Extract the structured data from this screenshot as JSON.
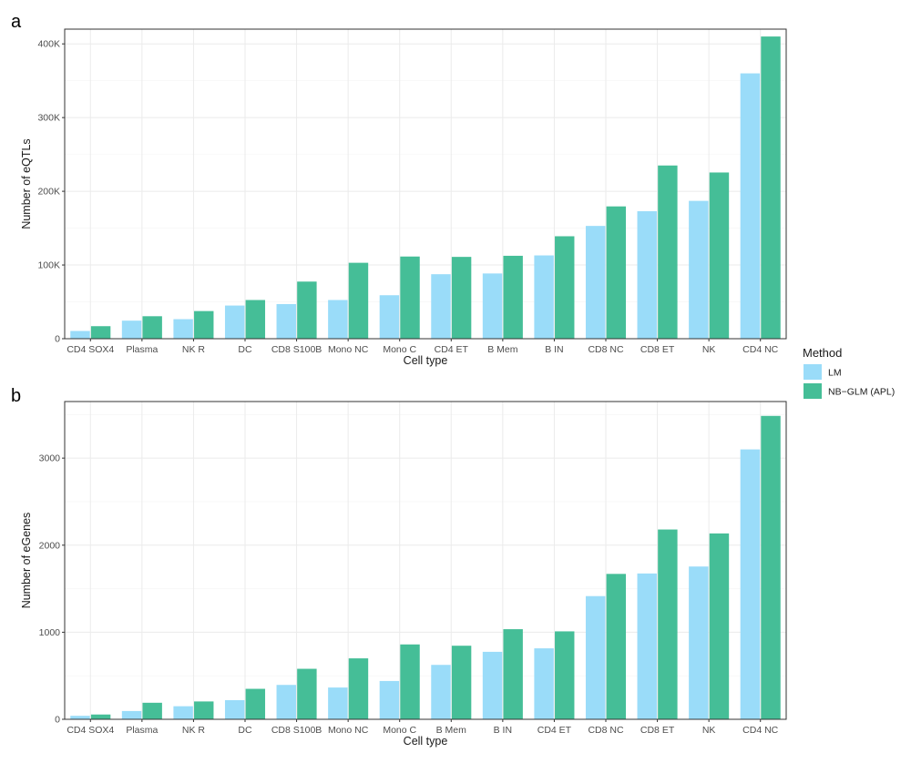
{
  "chart_data": [
    {
      "type": "bar",
      "panel_label": "a",
      "xlabel": "Cell type",
      "ylabel": "Number of eQTLs",
      "ylim": [
        0,
        420000
      ],
      "yticks": [
        0,
        100000,
        200000,
        300000,
        400000
      ],
      "ytick_labels": [
        "0",
        "100K",
        "200K",
        "300K",
        "400K"
      ],
      "grid": true,
      "categories": [
        "CD4 SOX4",
        "Plasma",
        "NK R",
        "DC",
        "CD8 S100B",
        "Mono NC",
        "Mono C",
        "CD4 ET",
        "B Mem",
        "B IN",
        "CD8 NC",
        "CD8 ET",
        "NK",
        "CD4 NC"
      ],
      "series": [
        {
          "name": "LM",
          "color": "#9ADCF9",
          "values": [
            10500,
            24500,
            26500,
            45000,
            47000,
            52500,
            59000,
            87500,
            88500,
            113000,
            153000,
            173000,
            187000,
            360000
          ]
        },
        {
          "name": "NB−GLM (APL)",
          "color": "#45BE97",
          "values": [
            17000,
            30500,
            37500,
            52500,
            77500,
            103000,
            111500,
            111000,
            112500,
            139000,
            179500,
            235000,
            225500,
            410000
          ]
        }
      ]
    },
    {
      "type": "bar",
      "panel_label": "b",
      "xlabel": "Cell type",
      "ylabel": "Number of eGenes",
      "ylim": [
        0,
        3650
      ],
      "yticks": [
        0,
        1000,
        2000,
        3000
      ],
      "ytick_labels": [
        "0",
        "1000",
        "2000",
        "3000"
      ],
      "grid": true,
      "categories": [
        "CD4 SOX4",
        "Plasma",
        "NK R",
        "DC",
        "CD8 S100B",
        "Mono NC",
        "Mono C",
        "B Mem",
        "B IN",
        "CD4 ET",
        "CD8 NC",
        "CD8 ET",
        "NK",
        "CD4 NC"
      ],
      "series": [
        {
          "name": "LM",
          "color": "#9ADCF9",
          "values": [
            40,
            95,
            150,
            220,
            395,
            365,
            440,
            625,
            775,
            815,
            1415,
            1675,
            1755,
            3100
          ]
        },
        {
          "name": "NB−GLM (APL)",
          "color": "#45BE97",
          "values": [
            55,
            190,
            205,
            350,
            580,
            700,
            860,
            845,
            1035,
            1010,
            1670,
            2180,
            2135,
            3485
          ]
        }
      ]
    }
  ],
  "legend": {
    "title": "Method",
    "placement": "right",
    "items": [
      {
        "label": "LM",
        "color": "#9ADCF9"
      },
      {
        "label": "NB−GLM (APL)",
        "color": "#45BE97"
      }
    ]
  }
}
